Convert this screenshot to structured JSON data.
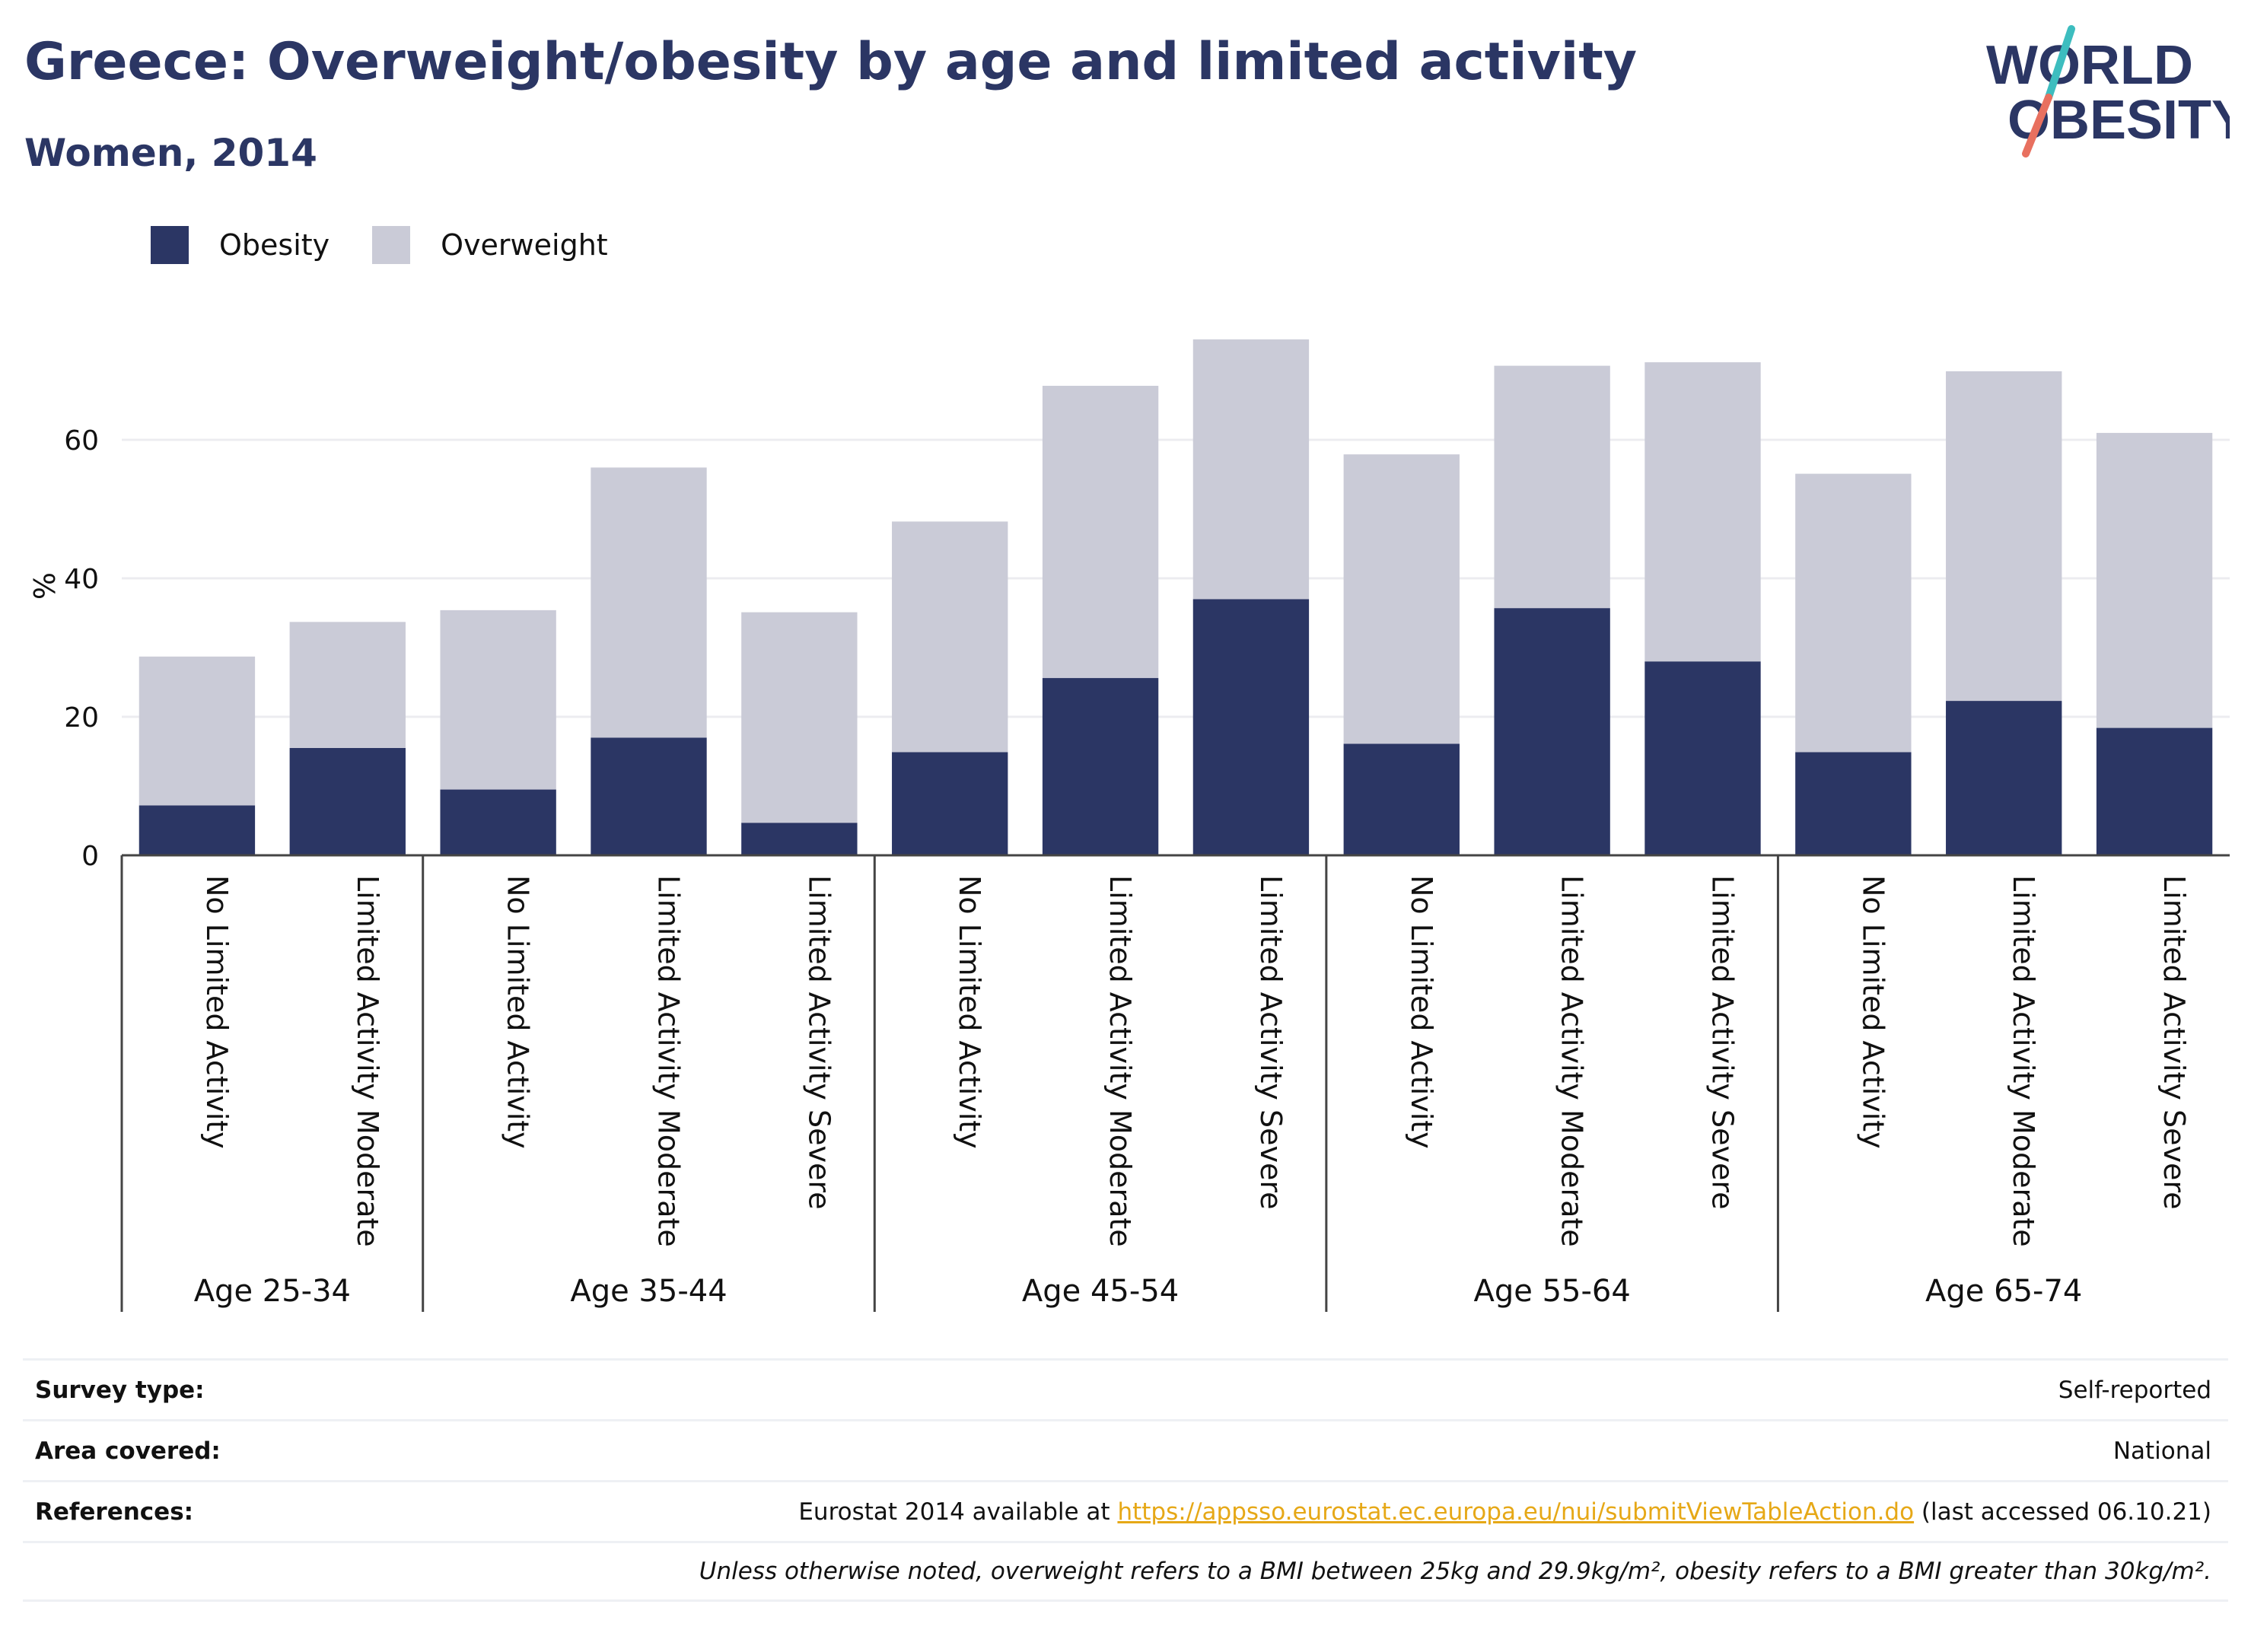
{
  "header": {
    "title": "Greece: Overweight/obesity by age and limited activity",
    "subtitle": "Women, 2014"
  },
  "logo": {
    "line1": "WORLD",
    "line2": "OBESITY"
  },
  "colors": {
    "obesity": "#2b3664",
    "overweight": "#cacbd7",
    "accent_teal": "#3dbdbf",
    "accent_coral": "#e8705f",
    "link": "#e6a817"
  },
  "legend": [
    {
      "label": "Obesity",
      "color": "#2b3664"
    },
    {
      "label": "Overweight",
      "color": "#cacbd7"
    }
  ],
  "chart_data": {
    "type": "bar",
    "stacked": true,
    "ylabel": "%",
    "ylim": [
      0,
      76
    ],
    "yticks": [
      0,
      20,
      40,
      60
    ],
    "grid": true,
    "legend_position": "top-left",
    "groups": [
      {
        "label": "Age 25-34",
        "categories": [
          "No Limited Activity",
          "Limited Activity Moderate"
        ]
      },
      {
        "label": "Age 35-44",
        "categories": [
          "No Limited Activity",
          "Limited Activity Moderate",
          "Limited Activity Severe"
        ]
      },
      {
        "label": "Age 45-54",
        "categories": [
          "No Limited Activity",
          "Limited Activity Moderate",
          "Limited Activity Severe"
        ]
      },
      {
        "label": "Age 55-64",
        "categories": [
          "No Limited Activity",
          "Limited Activity Moderate",
          "Limited Activity Severe"
        ]
      },
      {
        "label": "Age 65-74",
        "categories": [
          "No Limited Activity",
          "Limited Activity Moderate",
          "Limited Activity Severe"
        ]
      }
    ],
    "series": [
      {
        "name": "Obesity",
        "values": [
          7.2,
          15.5,
          9.5,
          17.0,
          4.7,
          14.9,
          25.6,
          37.0,
          16.1,
          35.7,
          28.0,
          14.9,
          22.3,
          18.4
        ]
      },
      {
        "name": "Overweight",
        "values": [
          21.5,
          18.2,
          25.9,
          39.0,
          30.4,
          33.3,
          42.2,
          37.5,
          41.8,
          35.0,
          43.2,
          40.2,
          47.6,
          42.6
        ]
      }
    ]
  },
  "info": {
    "survey_type": {
      "label": "Survey type:",
      "value": "Self-reported"
    },
    "area_covered": {
      "label": "Area covered:",
      "value": "National"
    },
    "references": {
      "label": "References:",
      "prefix": "Eurostat 2014 available at ",
      "link": "https://appsso.eurostat.ec.europa.eu/nui/submitViewTableAction.do",
      "suffix": " (last accessed 06.10.21)"
    },
    "note": "Unless otherwise noted, overweight refers to a BMI between 25kg and 29.9kg/m², obesity refers to a BMI greater than 30kg/m²."
  }
}
